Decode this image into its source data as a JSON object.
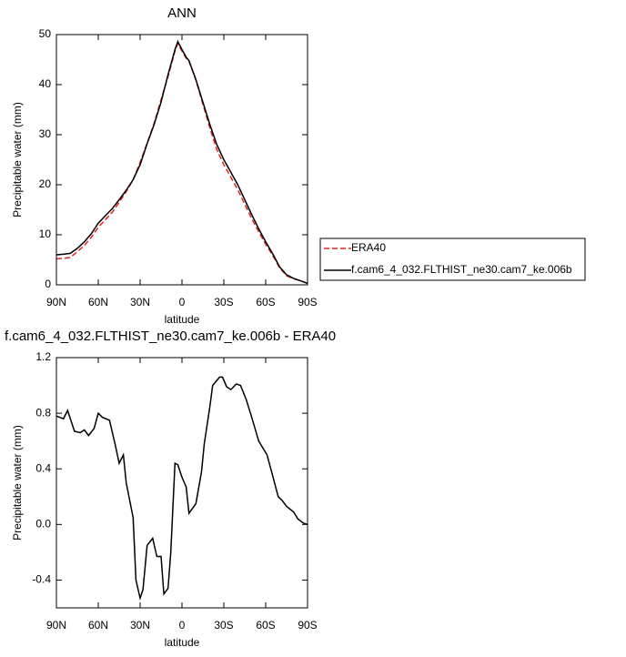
{
  "chart_data": [
    {
      "type": "line",
      "title": "ANN",
      "x_label": "latitude",
      "y_label": "Precipitable water (mm)",
      "x": [
        90,
        85,
        80,
        75,
        70,
        65,
        60,
        55,
        50,
        45,
        40,
        35,
        30,
        25,
        20,
        15,
        10,
        5,
        3,
        0,
        -3,
        -5,
        -10,
        -15,
        -20,
        -25,
        -30,
        -35,
        -40,
        -45,
        -50,
        -55,
        -60,
        -65,
        -70,
        -75,
        -80,
        -85,
        -90
      ],
      "series": [
        {
          "name": "ERA40",
          "color": "#e8231f",
          "line_style": "dashed",
          "values": [
            5.2,
            5.3,
            5.5,
            6.6,
            7.9,
            9.5,
            11.5,
            13.0,
            14.5,
            16.5,
            18.6,
            21.0,
            24.5,
            28.3,
            32.2,
            37.0,
            41.6,
            46.7,
            48.2,
            46.7,
            45.3,
            44.7,
            40.9,
            36.1,
            31.3,
            27.0,
            24.0,
            21.5,
            19.0,
            16.1,
            13.2,
            10.6,
            8.1,
            5.9,
            3.4,
            1.8,
            1.2,
            0.8,
            0.3
          ]
        },
        {
          "name": "f.cam6_4_032.FLTHIST_ne30.cam7_ke.006b",
          "color": "#000000",
          "line_style": "solid",
          "values": [
            6.0,
            6.1,
            6.3,
            7.3,
            8.6,
            10.2,
            12.3,
            13.8,
            15.2,
            17.0,
            18.9,
            21.0,
            24.0,
            28.2,
            32.0,
            36.5,
            42.0,
            47.0,
            48.6,
            47.0,
            45.5,
            44.8,
            41.0,
            36.5,
            32.0,
            28.0,
            25.0,
            22.5,
            20.0,
            17.0,
            14.0,
            11.2,
            8.6,
            6.2,
            3.6,
            2.0,
            1.3,
            0.8,
            0.3
          ]
        }
      ],
      "xlim": [
        90,
        -90
      ],
      "ylim": [
        0,
        50
      ],
      "xticks": [
        {
          "value": 90,
          "label": "90N"
        },
        {
          "value": 60,
          "label": "60N"
        },
        {
          "value": 30,
          "label": "30N"
        },
        0,
        {
          "value": -30,
          "label": "30S"
        },
        {
          "value": -60,
          "label": "60S"
        },
        {
          "value": -90,
          "label": "90S"
        }
      ],
      "yticks": [
        0,
        10,
        20,
        30,
        40,
        50
      ],
      "legend": "right"
    },
    {
      "type": "line",
      "title": "f.cam6_4_032.FLTHIST_ne30.cam7_ke.006b - ERA40",
      "x_label": "latitude",
      "y_label": "Precipitable water (mm)",
      "x": [
        90,
        85,
        82,
        77,
        73,
        70,
        67,
        63,
        60,
        57,
        52,
        48,
        45,
        42,
        40,
        35,
        33,
        30,
        28,
        25,
        21,
        18,
        15,
        13,
        10,
        8,
        5,
        3,
        0,
        -3,
        -5,
        -10,
        -14,
        -16,
        -20,
        -22,
        -27,
        -29,
        -32,
        -35,
        -39,
        -42,
        -46,
        -50,
        -55,
        -61,
        -65,
        -69,
        -72,
        -75,
        -80,
        -83,
        -87,
        -90
      ],
      "series": [
        {
          "color": "#000000",
          "line_style": "solid",
          "values": [
            0.78,
            0.76,
            0.82,
            0.67,
            0.66,
            0.68,
            0.64,
            0.69,
            0.8,
            0.77,
            0.75,
            0.58,
            0.44,
            0.5,
            0.3,
            0.05,
            -0.4,
            -0.53,
            -0.47,
            -0.15,
            -0.1,
            -0.23,
            -0.23,
            -0.5,
            -0.46,
            -0.2,
            0.44,
            0.43,
            0.34,
            0.27,
            0.08,
            0.15,
            0.38,
            0.58,
            0.85,
            1.0,
            1.06,
            1.06,
            0.99,
            0.97,
            1.01,
            1.0,
            0.9,
            0.77,
            0.6,
            0.5,
            0.35,
            0.2,
            0.17,
            0.13,
            0.09,
            0.04,
            0.01,
            0.0
          ]
        }
      ],
      "xlim": [
        90,
        -90
      ],
      "ylim": [
        -0.6,
        1.2
      ],
      "xticks": [
        {
          "value": 90,
          "label": "90N"
        },
        {
          "value": 60,
          "label": "60N"
        },
        {
          "value": 30,
          "label": "30N"
        },
        0,
        {
          "value": -30,
          "label": "30S"
        },
        {
          "value": -60,
          "label": "60S"
        },
        {
          "value": -90,
          "label": "90S"
        }
      ],
      "yticks": [
        -0.4,
        {
          "value": 0,
          "label": "0.0"
        },
        0.4,
        0.8,
        1.2
      ]
    }
  ]
}
